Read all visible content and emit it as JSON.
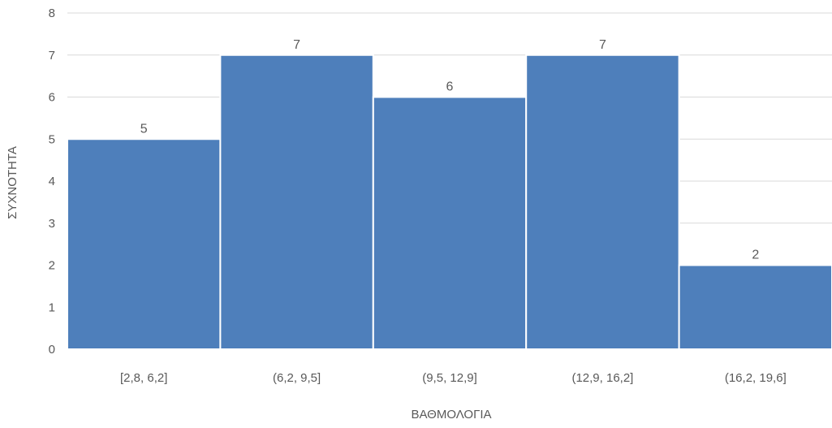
{
  "chart_data": {
    "type": "bar",
    "title": "",
    "xlabel": "ΒΑΘΜΟΛΟΓΙΑ",
    "ylabel": "ΣΥΧΝΟΤΗΤΑ",
    "categories": [
      "[2,8, 6,2]",
      "(6,2, 9,5]",
      "(9,5, 12,9]",
      "(12,9, 16,2]",
      "(16,2, 19,6]"
    ],
    "values": [
      5,
      7,
      6,
      7,
      2
    ],
    "data_labels": [
      "5",
      "7",
      "6",
      "7",
      "2"
    ],
    "ylim": [
      0,
      8
    ],
    "yticks": [
      "0",
      "1",
      "2",
      "3",
      "4",
      "5",
      "6",
      "7",
      "8"
    ],
    "grid": true,
    "legend": "none",
    "bar_color": "#4E7FBB",
    "bar_border_color": "#FFFFFF",
    "grid_color": "#D9D9D9",
    "text_color": "#595959"
  }
}
